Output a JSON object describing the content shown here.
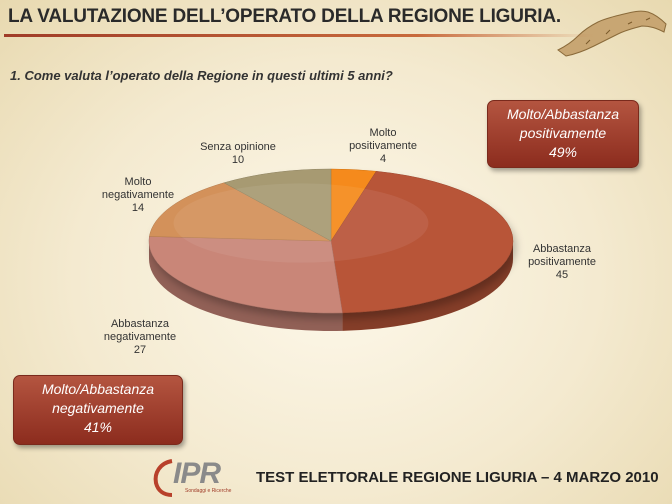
{
  "slide": {
    "title": "LA VALUTAZIONE DELL’OPERATO DELLA REGIONE LIGURIA.",
    "question": "1. Come valuta l’operato della Regione in questi ultimi 5 anni?",
    "footer": "TEST ELETTORALE REGIONE LIGURIA – 4 MARZO 2010",
    "logo": {
      "text": "IPR",
      "sub": "Sondaggi e Ricerche"
    }
  },
  "summary": {
    "positive": {
      "line1": "Molto/Abbastanza",
      "line2": "positivamente",
      "value": "49%"
    },
    "negative": {
      "line1": "Molto/Abbastanza",
      "line2": "negativamente",
      "value": "41%"
    }
  },
  "chart_data": {
    "type": "pie",
    "title": "",
    "slices": [
      {
        "label_line1": "Molto",
        "label_line2": "positivamente",
        "value": 4,
        "color": "#f58a1a"
      },
      {
        "label_line1": "Abbastanza",
        "label_line2": "positivamente",
        "value": 45,
        "color": "#b85538"
      },
      {
        "label_line1": "Abbastanza",
        "label_line2": "negativamente",
        "value": 27,
        "color": "#c98678"
      },
      {
        "label_line1": "Molto",
        "label_line2": "negativamente",
        "value": 14,
        "color": "#d3915a"
      },
      {
        "label_line1": "Senza opinione",
        "label_line2": "",
        "value": 10,
        "color": "#a79a72"
      }
    ],
    "legend": "none"
  }
}
